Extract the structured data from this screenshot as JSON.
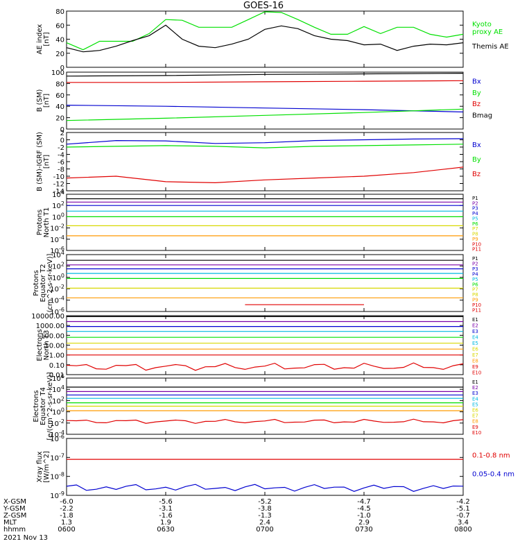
{
  "title": "GOES-16",
  "colors": {
    "black": "#000000",
    "red": "#e00000",
    "green": "#00e000",
    "blue": "#0000d0",
    "cyan": "#00b8e0",
    "purple": "#7a00a8",
    "orange": "#ff9a00",
    "yellow": "#d8d800"
  },
  "x_axis": {
    "rows": [
      {
        "label": "X-GSM",
        "values": [
          "-6.0",
          "-5.6",
          "-5.2",
          "-4.7",
          "-4.2"
        ]
      },
      {
        "label": "Y-GSM",
        "values": [
          "-2.2",
          "-3.1",
          "-3.8",
          "-4.5",
          "-5.1"
        ]
      },
      {
        "label": "Z-GSM",
        "values": [
          "-1.8",
          "-1.6",
          "-1.3",
          "-1.0",
          "-0.7"
        ]
      },
      {
        "label": "MLT",
        "values": [
          "1.3",
          "1.9",
          "2.4",
          "2.9",
          "3.4"
        ]
      },
      {
        "label": "hhmm",
        "values": [
          "0600",
          "0630",
          "0700",
          "0730",
          "0800"
        ]
      }
    ],
    "date": "2021 Nov 13"
  },
  "chart_data": [
    {
      "type": "line",
      "ylabel": [
        "AE index",
        "[nT]"
      ],
      "ylim": [
        0,
        80
      ],
      "yticks": [
        "0",
        "20",
        "40",
        "60",
        "80"
      ],
      "x": [
        "0600",
        "0605",
        "0610",
        "0615",
        "0620",
        "0625",
        "0630",
        "0635",
        "0640",
        "0645",
        "0650",
        "0655",
        "0700",
        "0705",
        "0710",
        "0715",
        "0720",
        "0725",
        "0730",
        "0735",
        "0740",
        "0745",
        "0750",
        "0755",
        "0800"
      ],
      "legend": [
        {
          "name": "Kyoto\nproxy AE",
          "color": "green"
        },
        {
          "name": "Themis AE",
          "color": "black"
        }
      ],
      "series": [
        {
          "name": "Kyoto proxy AE",
          "color": "green",
          "values": [
            35,
            25,
            37,
            37,
            37,
            48,
            68,
            67,
            57,
            57,
            57,
            68,
            79,
            78,
            68,
            57,
            47,
            47,
            58,
            48,
            57,
            57,
            47,
            43,
            47
          ]
        },
        {
          "name": "Themis AE",
          "color": "black",
          "values": [
            28,
            22,
            24,
            30,
            38,
            45,
            60,
            40,
            30,
            28,
            33,
            40,
            54,
            59,
            55,
            45,
            40,
            38,
            32,
            33,
            24,
            30,
            33,
            32,
            35
          ]
        }
      ]
    },
    {
      "type": "line",
      "ylabel": [
        "B (SM)",
        "[nT]"
      ],
      "ylim": [
        0,
        100
      ],
      "yticks": [
        "0",
        "20",
        "40",
        "60",
        "80",
        "100"
      ],
      "legend": [
        {
          "name": "Bx",
          "color": "blue"
        },
        {
          "name": "By",
          "color": "green"
        },
        {
          "name": "Bz",
          "color": "red"
        },
        {
          "name": "Bmag",
          "color": "black"
        }
      ],
      "series": [
        {
          "name": "Bmag",
          "color": "black",
          "values": [
            93,
            94,
            96,
            97,
            98
          ]
        },
        {
          "name": "Bz",
          "color": "red",
          "values": [
            82,
            82,
            83,
            84,
            85
          ]
        },
        {
          "name": "Bx",
          "color": "blue",
          "values": [
            42,
            40,
            37,
            34,
            30
          ]
        },
        {
          "name": "By",
          "color": "green",
          "values": [
            15,
            19,
            24,
            29,
            35
          ]
        }
      ]
    },
    {
      "type": "line",
      "ylabel": [
        "B (SM)-IGRF (SM)",
        "[nT]"
      ],
      "ylim": [
        -14,
        2
      ],
      "yticks": [
        "2",
        "0",
        "-2",
        "-4",
        "-6",
        "-8",
        "-10",
        "-12",
        "-14"
      ],
      "legend": [
        {
          "name": "Bx",
          "color": "blue"
        },
        {
          "name": "By",
          "color": "green"
        },
        {
          "name": "Bz",
          "color": "red"
        }
      ],
      "series": [
        {
          "name": "Bx",
          "color": "blue",
          "values": [
            -1.2,
            -0.2,
            -0.3,
            -1.0,
            -0.8,
            -0.2,
            0.0,
            0.2,
            0.3
          ]
        },
        {
          "name": "By",
          "color": "green",
          "values": [
            -2.0,
            -1.8,
            -1.6,
            -1.8,
            -2.2,
            -1.8,
            -1.6,
            -1.4,
            -1.2
          ]
        },
        {
          "name": "Bz",
          "color": "red",
          "values": [
            -10.5,
            -10.0,
            -11.5,
            -11.8,
            -11.0,
            -10.5,
            -10.0,
            -9.0,
            -7.5
          ]
        }
      ]
    },
    {
      "type": "line",
      "scale": "log",
      "ylabel": [
        "Protons",
        "North T1"
      ],
      "ylim": [
        -6,
        4
      ],
      "yticks": [
        "10^4",
        "10^2",
        "10^0",
        "10^-2",
        "10^-4",
        "10^-6"
      ],
      "legend": [
        {
          "name": "P1",
          "color": "black"
        },
        {
          "name": "P2",
          "color": "purple"
        },
        {
          "name": "P3",
          "color": "blue"
        },
        {
          "name": "P4",
          "color": "blue"
        },
        {
          "name": "P5",
          "color": "cyan"
        },
        {
          "name": "P6",
          "color": "green"
        },
        {
          "name": "P7",
          "color": "yellow"
        },
        {
          "name": "P8",
          "color": "yellow"
        },
        {
          "name": "P9",
          "color": "orange"
        },
        {
          "name": "P10",
          "color": "red"
        },
        {
          "name": "P11",
          "color": "red"
        }
      ],
      "series": [
        {
          "name": "P1",
          "color": "black",
          "level": 3.2
        },
        {
          "name": "P2",
          "color": "purple",
          "level": 2.6
        },
        {
          "name": "P3",
          "color": "blue",
          "level": 2.0
        },
        {
          "name": "P4",
          "color": "cyan",
          "level": 1.0
        },
        {
          "name": "P5",
          "color": "green",
          "level": 0.0
        },
        {
          "name": "P7",
          "color": "yellow",
          "level": -1.6
        },
        {
          "name": "P9",
          "color": "orange",
          "level": -3.4
        }
      ]
    },
    {
      "type": "line",
      "scale": "log",
      "ylabel": [
        "Protons",
        "Equator T2",
        "(cm^2-s-sr-keV)]"
      ],
      "ylim": [
        -6,
        4
      ],
      "yticks": [
        "10^4",
        "10^2",
        "10^0",
        "10^-2",
        "10^-4",
        "10^-6"
      ],
      "legend": [
        {
          "name": "P1",
          "color": "black"
        },
        {
          "name": "P2",
          "color": "purple"
        },
        {
          "name": "P3",
          "color": "blue"
        },
        {
          "name": "P4",
          "color": "blue"
        },
        {
          "name": "P5",
          "color": "cyan"
        },
        {
          "name": "P6",
          "color": "green"
        },
        {
          "name": "P7",
          "color": "yellow"
        },
        {
          "name": "P8",
          "color": "yellow"
        },
        {
          "name": "P9",
          "color": "orange"
        },
        {
          "name": "P10",
          "color": "red"
        },
        {
          "name": "P11",
          "color": "red"
        }
      ],
      "series": [
        {
          "name": "P1",
          "color": "black",
          "level": 3.0
        },
        {
          "name": "P2",
          "color": "purple",
          "level": 2.2
        },
        {
          "name": "P3",
          "color": "blue",
          "level": 1.5
        },
        {
          "name": "P4",
          "color": "cyan",
          "level": 0.7
        },
        {
          "name": "P5",
          "color": "green",
          "level": -0.2
        },
        {
          "name": "P7",
          "color": "yellow",
          "level": -1.9
        },
        {
          "name": "P9",
          "color": "orange",
          "level": -3.6
        },
        {
          "name": "P10",
          "color": "red",
          "level": -4.8,
          "partial": [
            0.45,
            0.75
          ]
        }
      ]
    },
    {
      "type": "line",
      "scale": "log",
      "ylabel": [
        "Electrons",
        "North T3"
      ],
      "ylim": [
        -2,
        4
      ],
      "yticks": [
        "10000.00",
        "1000.00",
        "100.00",
        "10.00",
        "1.00",
        "0.10",
        "0.01"
      ],
      "legend": [
        {
          "name": "E1",
          "color": "black"
        },
        {
          "name": "E2",
          "color": "purple"
        },
        {
          "name": "E3",
          "color": "blue"
        },
        {
          "name": "E4",
          "color": "cyan"
        },
        {
          "name": "E5",
          "color": "cyan"
        },
        {
          "name": "E6",
          "color": "yellow"
        },
        {
          "name": "E7",
          "color": "yellow"
        },
        {
          "name": "E8",
          "color": "orange"
        },
        {
          "name": "E9",
          "color": "red"
        },
        {
          "name": "E10",
          "color": "red"
        }
      ],
      "series": [
        {
          "name": "E1",
          "color": "black",
          "level": 3.9
        },
        {
          "name": "E2",
          "color": "purple",
          "level": 3.4
        },
        {
          "name": "E3",
          "color": "blue",
          "level": 2.9
        },
        {
          "name": "E4",
          "color": "cyan",
          "level": 2.4
        },
        {
          "name": "E5",
          "color": "green",
          "level": 1.8
        },
        {
          "name": "E6",
          "color": "yellow",
          "level": 1.2
        },
        {
          "name": "E7",
          "color": "orange",
          "level": 0.6
        },
        {
          "name": "E9",
          "color": "red",
          "level": 0.0
        },
        {
          "name": "E10",
          "color": "red",
          "level": -1.2,
          "wavy": true
        }
      ]
    },
    {
      "type": "line",
      "scale": "log",
      "ylabel": [
        "Electrons",
        "Equator T4",
        "[e/(cm^2-s-sr-keV)]"
      ],
      "ylim": [
        -4,
        6
      ],
      "yticks": [
        "10^6",
        "10^4",
        "10^2",
        "10^0",
        "10^-2",
        "10^-4"
      ],
      "legend": [
        {
          "name": "E1",
          "color": "black"
        },
        {
          "name": "E2",
          "color": "purple"
        },
        {
          "name": "E3",
          "color": "blue"
        },
        {
          "name": "E4",
          "color": "cyan"
        },
        {
          "name": "E5",
          "color": "cyan"
        },
        {
          "name": "E6",
          "color": "yellow"
        },
        {
          "name": "E7",
          "color": "yellow"
        },
        {
          "name": "E8",
          "color": "orange"
        },
        {
          "name": "E9",
          "color": "red"
        },
        {
          "name": "E10",
          "color": "red"
        }
      ],
      "series": [
        {
          "name": "E1",
          "color": "black",
          "level": 4.4
        },
        {
          "name": "E2",
          "color": "purple",
          "level": 3.6
        },
        {
          "name": "E3",
          "color": "blue",
          "level": 3.0
        },
        {
          "name": "E4",
          "color": "cyan",
          "level": 2.4
        },
        {
          "name": "E5",
          "color": "green",
          "level": 1.6
        },
        {
          "name": "E6",
          "color": "yellow",
          "level": 1.0
        },
        {
          "name": "E7",
          "color": "orange",
          "level": 0.2
        },
        {
          "name": "E9",
          "color": "red",
          "level": -1.7,
          "wavy": true
        }
      ]
    },
    {
      "type": "line",
      "scale": "log",
      "ylabel": [
        "Xray flux",
        "[W/m^2]"
      ],
      "ylim": [
        -9,
        -6
      ],
      "yticks": [
        "10^-6",
        "10^-7",
        "10^-8",
        "10^-9"
      ],
      "legend": [
        {
          "name": "0.1-0.8 nm",
          "color": "red"
        },
        {
          "name": "0.05-0.4 nm",
          "color": "blue"
        }
      ],
      "series": [
        {
          "name": "0.1-0.8 nm",
          "color": "red",
          "level": -7.1
        },
        {
          "name": "0.05-0.4 nm",
          "color": "blue",
          "level": -8.6,
          "noisy": true
        }
      ]
    }
  ]
}
